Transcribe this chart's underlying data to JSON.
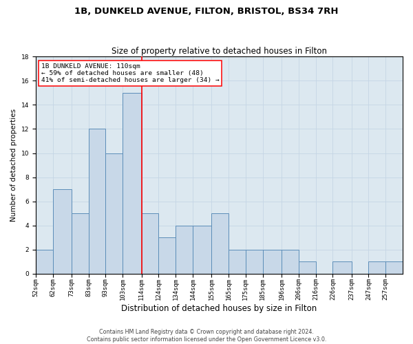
{
  "title1": "1B, DUNKELD AVENUE, FILTON, BRISTOL, BS34 7RH",
  "title2": "Size of property relative to detached houses in Filton",
  "xlabel": "Distribution of detached houses by size in Filton",
  "ylabel": "Number of detached properties",
  "bins": [
    52,
    62,
    73,
    83,
    93,
    103,
    114,
    124,
    134,
    144,
    155,
    165,
    175,
    185,
    196,
    206,
    216,
    226,
    237,
    247,
    257
  ],
  "bar_labels": [
    "52sqm",
    "62sqm",
    "73sqm",
    "83sqm",
    "93sqm",
    "103sqm",
    "114sqm",
    "124sqm",
    "134sqm",
    "144sqm",
    "155sqm",
    "165sqm",
    "175sqm",
    "185sqm",
    "196sqm",
    "206sqm",
    "216sqm",
    "226sqm",
    "237sqm",
    "247sqm",
    "257sqm"
  ],
  "heights": [
    2,
    7,
    5,
    12,
    10,
    15,
    5,
    3,
    4,
    4,
    5,
    2,
    2,
    2,
    2,
    1,
    0,
    1,
    0,
    1,
    1
  ],
  "bar_color": "#c8d8e8",
  "bar_edgecolor": "#5b8db8",
  "bar_linewidth": 0.7,
  "vline_x": 114,
  "vline_color": "red",
  "vline_linewidth": 1.2,
  "annotation_text": "1B DUNKELD AVENUE: 110sqm\n← 59% of detached houses are smaller (48)\n41% of semi-detached houses are larger (34) →",
  "annotation_box_edgecolor": "red",
  "annotation_box_facecolor": "white",
  "ylim": [
    0,
    18
  ],
  "yticks": [
    0,
    2,
    4,
    6,
    8,
    10,
    12,
    14,
    16,
    18
  ],
  "grid_color": "#c5d5e5",
  "background_color": "#dce8f0",
  "footnote": "Contains HM Land Registry data © Crown copyright and database right 2024.\nContains public sector information licensed under the Open Government Licence v3.0.",
  "title1_fontsize": 9.5,
  "title2_fontsize": 8.5,
  "xlabel_fontsize": 8.5,
  "ylabel_fontsize": 7.5,
  "tick_fontsize": 6.5,
  "annotation_fontsize": 6.8,
  "footnote_fontsize": 5.8
}
